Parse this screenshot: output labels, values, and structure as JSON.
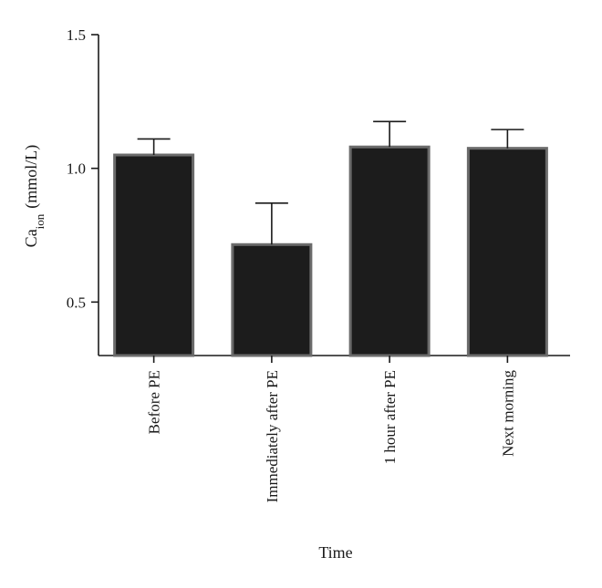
{
  "chart_data": {
    "type": "bar",
    "categories": [
      "Before PE",
      "Immediately after PE",
      "1 hour after PE",
      "Next morning"
    ],
    "values": [
      1.05,
      0.715,
      1.08,
      1.075
    ],
    "errors_upper": [
      1.11,
      0.87,
      1.175,
      1.145
    ],
    "ylim": [
      0.3,
      1.5
    ],
    "yticks": [
      "0.5",
      "1.0",
      "1.5"
    ],
    "ytick_values": [
      0.5,
      1.0,
      1.5
    ],
    "ylabel": {
      "main": "Ca",
      "subscript": "ion",
      "unit": "(mmol/L)"
    },
    "xlabel": "Time",
    "grid": false,
    "legend": "none",
    "colors": {
      "bar_fill": "#1c1c1c",
      "bar_stroke": "#6b6b6b",
      "axis": "#1a1a1a"
    }
  }
}
